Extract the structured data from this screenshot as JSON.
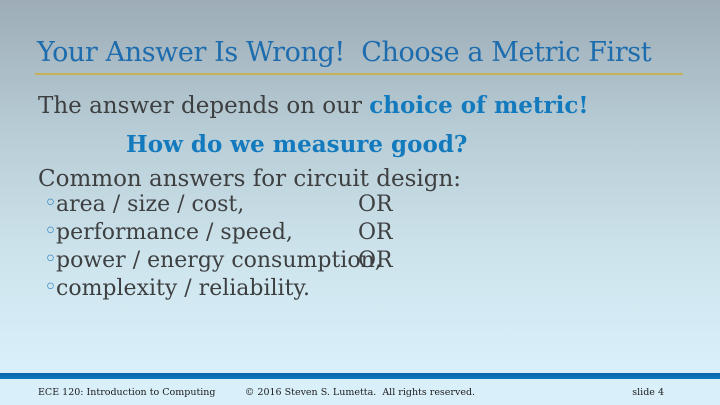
{
  "slide": {
    "title": "Your Answer Is Wrong!  Choose a Metric First",
    "body": {
      "line1_prefix": "The answer depends on our ",
      "line1_highlight": "choice of metric!",
      "question": "How do we measure good?",
      "list_intro": "Common answers for circuit design:",
      "bullet_glyph": "◦",
      "bullets": [
        {
          "text": "area / size / cost,",
          "suffix": "OR"
        },
        {
          "text": "performance / speed,",
          "suffix": "OR"
        },
        {
          "text": "power / energy consumption,",
          "suffix": "OR"
        },
        {
          "text": "complexity / reliability.",
          "suffix": ""
        }
      ]
    },
    "footer": {
      "left": "ECE 120: Introduction to Computing",
      "center": "© 2016 Steven S. Lumetta.  All rights reserved.",
      "right": "slide 4"
    },
    "colors": {
      "title_blue": "#1d6cae",
      "accent_blue": "#147abe",
      "body_gray": "#3d3f40",
      "gold_rule": "#c6b257",
      "bullet_blue": "#2f86c0",
      "footer_bar_blue": "#0e77bd",
      "footer_strip_blue": "#d9eff9",
      "background_top": "#9dacb6",
      "background_bottom": "#dcf3fd"
    }
  }
}
